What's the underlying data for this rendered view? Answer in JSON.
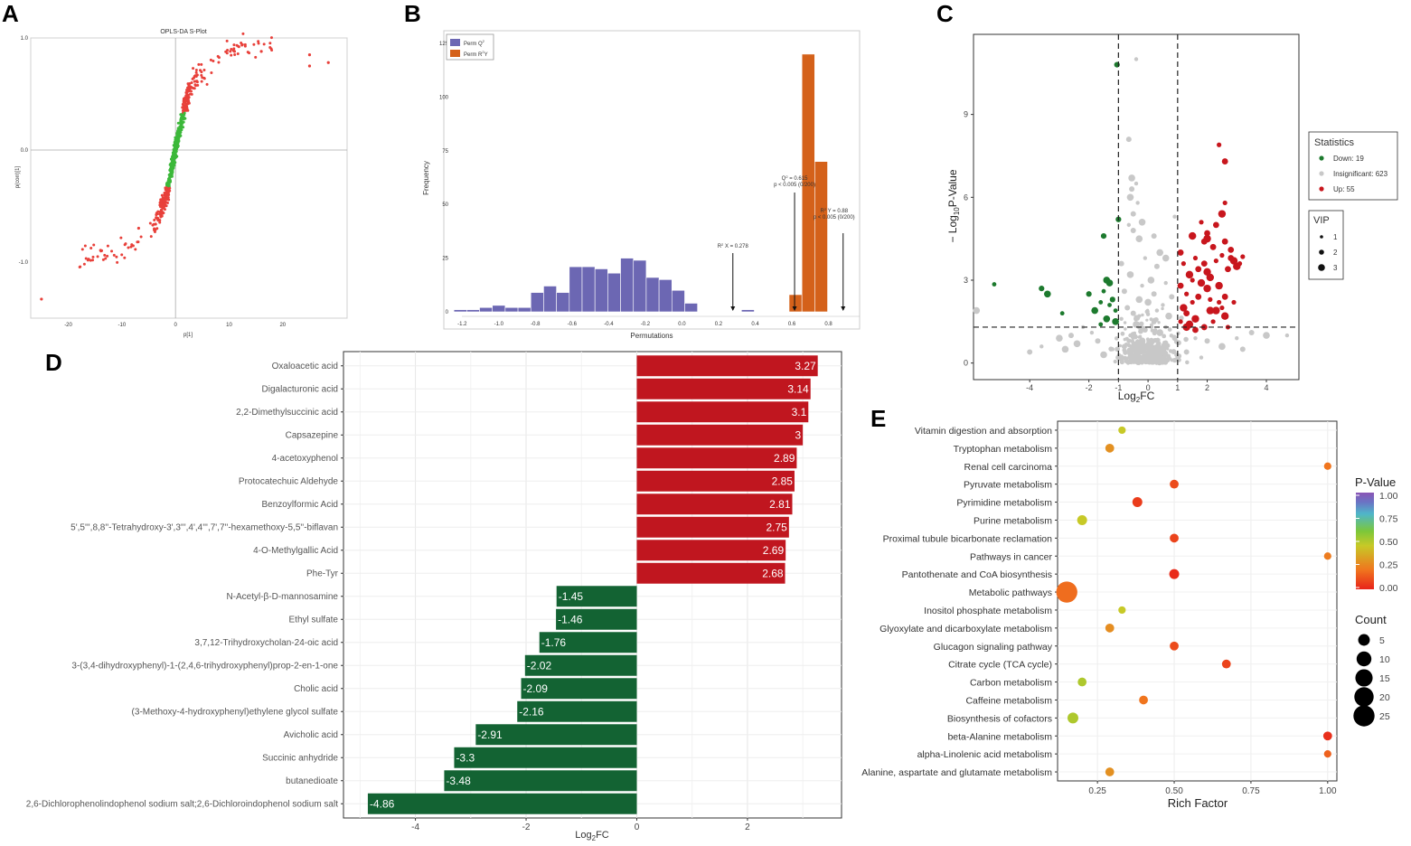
{
  "panel_labels": [
    "A",
    "B",
    "C",
    "D",
    "E"
  ],
  "chart_data": [
    {
      "panel": "A",
      "type": "scatter",
      "title": "OPLS-DA S-Plot",
      "xlabel": "p[1]",
      "ylabel": "p(corr)[1]",
      "xlim": [
        -27,
        32
      ],
      "ylim": [
        -1.5,
        1.0
      ],
      "xticks": [
        -20,
        -10,
        0,
        10,
        20
      ],
      "xtick_labels": [
        "-20",
        "-10",
        "0",
        "10",
        "20"
      ],
      "yticks": [
        -1.0,
        0.0,
        1.0
      ],
      "ytick_labels": [
        "-1.0",
        "0.0",
        "1.0"
      ],
      "colors": {
        "significant": "#e8403a",
        "other": "#3cb83a"
      }
    },
    {
      "panel": "B",
      "type": "bar",
      "xlabel": "Permutations",
      "ylabel": "Frequency",
      "xlim": [
        -1.3,
        0.97
      ],
      "ylim": [
        0,
        125
      ],
      "xticks": [
        -1.2,
        -1.0,
        -0.8,
        -0.6,
        -0.4,
        -0.2,
        0.0,
        0.2,
        0.4,
        0.6,
        0.8
      ],
      "xtick_labels": [
        "-1.2",
        "-1.0",
        "-0.8",
        "-0.6",
        "-0.4",
        "-0.2",
        "0.0",
        "0.2",
        "0.4",
        "0.6",
        "0.8"
      ],
      "yticks": [
        0,
        25,
        50,
        75,
        100,
        125
      ],
      "ytick_labels": [
        "0",
        "25",
        "50",
        "75",
        "100",
        "125"
      ],
      "bin_width": 0.07,
      "series": [
        {
          "name": "Perm Q²",
          "legend_text": "Perm Q",
          "legend_sup": "2",
          "color": "#6c67b3",
          "bins": [
            -1.21,
            -1.14,
            -1.07,
            -1.0,
            -0.93,
            -0.86,
            -0.79,
            -0.72,
            -0.65,
            -0.58,
            -0.51,
            -0.44,
            -0.37,
            -0.3,
            -0.23,
            -0.16,
            -0.09,
            -0.02,
            0.05,
            0.36
          ],
          "values": [
            1,
            1,
            2,
            3,
            2,
            2,
            9,
            12,
            9,
            21,
            21,
            20,
            18,
            25,
            24,
            16,
            15,
            10,
            4,
            1
          ]
        },
        {
          "name": "Perm R²Y",
          "legend_text": "Perm R",
          "legend_sup": "2",
          "legend_suffix": "Y",
          "color": "#d4611a",
          "bins": [
            0.62,
            0.69,
            0.76
          ],
          "values": [
            8,
            120,
            70
          ]
        }
      ],
      "annotations": [
        {
          "x": 0.278,
          "text": "R² X = 0.278",
          "main": "R",
          "sup": "2",
          "rest": " X = 0.278"
        },
        {
          "x": 0.615,
          "text": "Q² = 0.615",
          "main": "Q",
          "sup": "2",
          "rest": " = 0.615",
          "line2": "p < 0.005 (0/200)"
        },
        {
          "x": 0.88,
          "text": "R² Y = 0.88",
          "main": "R",
          "sup": "2",
          "rest": " Y = 0.88",
          "line2": "p < 0.005 (0/200)"
        }
      ]
    },
    {
      "panel": "C",
      "type": "scatter",
      "xlabel": "Log2FC",
      "xlabel_main": "Log",
      "xlabel_sub": "2",
      "xlabel_rest": "FC",
      "ylabel": "−Log10P-Value",
      "ylabel_main": "− Log",
      "ylabel_sub": "10",
      "ylabel_rest": "P-Value",
      "xlim": [
        -5.9,
        5.1
      ],
      "ylim": [
        -0.6,
        11.9
      ],
      "xticks": [
        -4,
        -2,
        -1,
        0,
        1,
        2,
        4
      ],
      "xtick_labels": [
        "-4",
        "-2",
        "-1",
        "0",
        "1",
        "2",
        "4"
      ],
      "yticks": [
        0,
        3,
        6,
        9
      ],
      "ytick_labels": [
        "0",
        "3",
        "6",
        "9"
      ],
      "thresholds": {
        "fc": [
          -1,
          1
        ],
        "p": 1.3
      },
      "legend_statistics_title": "Statistics",
      "legend_statistics": [
        {
          "label": "Down: 19",
          "color": "#1d7a2e"
        },
        {
          "label": "Insignificant: 623",
          "color": "#c8c8c8"
        },
        {
          "label": "Up: 55",
          "color": "#c8161d"
        }
      ],
      "legend_vip_title": "VIP",
      "legend_vip": [
        "1",
        "2",
        "3"
      ],
      "points_down": [
        [
          -5.2,
          2.85
        ],
        [
          -3.6,
          2.7
        ],
        [
          -3.4,
          2.5
        ],
        [
          -2.9,
          1.8
        ],
        [
          -2.0,
          2.5
        ],
        [
          -1.8,
          1.9
        ],
        [
          -1.6,
          2.2
        ],
        [
          -1.5,
          4.6
        ],
        [
          -1.4,
          3.0
        ],
        [
          -1.3,
          2.1
        ],
        [
          -1.2,
          2.3
        ],
        [
          -1.1,
          1.5
        ],
        [
          -1.6,
          1.4
        ],
        [
          -1.0,
          5.2
        ],
        [
          -1.3,
          2.9
        ],
        [
          -1.5,
          2.6
        ],
        [
          -1.05,
          10.8
        ],
        [
          -1.4,
          1.6
        ],
        [
          -1.1,
          1.9
        ]
      ],
      "points_up": [
        [
          2.4,
          7.9
        ],
        [
          2.6,
          7.3
        ],
        [
          2.0,
          4.5
        ],
        [
          1.8,
          5.1
        ],
        [
          2.3,
          5.0
        ],
        [
          2.5,
          5.4
        ],
        [
          2.6,
          5.8
        ],
        [
          2.0,
          4.7
        ],
        [
          1.5,
          4.6
        ],
        [
          1.6,
          3.8
        ],
        [
          1.9,
          3.6
        ],
        [
          2.1,
          3.1
        ],
        [
          2.5,
          3.9
        ],
        [
          2.8,
          3.8
        ],
        [
          3.0,
          3.5
        ],
        [
          3.2,
          3.85
        ],
        [
          2.6,
          4.4
        ],
        [
          1.4,
          3.2
        ],
        [
          1.3,
          2.5
        ],
        [
          1.1,
          2.8
        ],
        [
          1.2,
          2.0
        ],
        [
          1.5,
          2.2
        ],
        [
          1.7,
          3.4
        ],
        [
          2.0,
          2.7
        ],
        [
          2.4,
          2.2
        ],
        [
          2.6,
          2.4
        ],
        [
          2.3,
          1.9
        ],
        [
          2.2,
          1.5
        ],
        [
          1.9,
          1.3
        ],
        [
          1.6,
          1.6
        ],
        [
          1.1,
          1.5
        ],
        [
          1.3,
          1.8
        ],
        [
          1.4,
          1.4
        ],
        [
          1.2,
          3.6
        ],
        [
          2.7,
          3.4
        ],
        [
          2.9,
          3.7
        ],
        [
          3.1,
          3.6
        ],
        [
          2.2,
          4.2
        ],
        [
          1.8,
          2.9
        ],
        [
          2.5,
          2.0
        ],
        [
          1.7,
          2.4
        ],
        [
          2.0,
          3.3
        ],
        [
          2.3,
          3.7
        ],
        [
          2.8,
          4.1
        ],
        [
          2.6,
          1.7
        ],
        [
          1.5,
          3.0
        ],
        [
          1.9,
          4.4
        ],
        [
          2.4,
          2.8
        ],
        [
          2.1,
          2.3
        ],
        [
          1.1,
          4.0
        ],
        [
          1.3,
          1.3
        ],
        [
          2.7,
          1.3
        ],
        [
          1.6,
          1.2
        ],
        [
          2.1,
          1.9
        ],
        [
          2.9,
          2.2
        ]
      ],
      "points_ns": [
        [
          -0.4,
          11.0
        ],
        [
          -0.65,
          8.1
        ],
        [
          -0.55,
          6.7
        ],
        [
          -0.4,
          6.5
        ],
        [
          -0.55,
          6.3
        ],
        [
          -0.6,
          6.0
        ],
        [
          -0.35,
          5.8
        ],
        [
          -0.5,
          5.4
        ],
        [
          -0.2,
          5.1
        ],
        [
          -0.65,
          5.0
        ],
        [
          -0.5,
          4.8
        ],
        [
          -0.3,
          4.5
        ],
        [
          0.9,
          5.3
        ],
        [
          0.2,
          4.6
        ],
        [
          0.4,
          4.0
        ],
        [
          -0.1,
          3.8
        ],
        [
          0.3,
          3.5
        ],
        [
          -0.6,
          3.2
        ],
        [
          0.6,
          2.9
        ],
        [
          -0.8,
          2.6
        ],
        [
          0.1,
          3.0
        ],
        [
          -0.2,
          2.8
        ],
        [
          0.8,
          2.4
        ],
        [
          -0.3,
          2.3
        ],
        [
          0.5,
          2.1
        ],
        [
          -0.7,
          2.0
        ],
        [
          0.0,
          2.2
        ],
        [
          0.3,
          1.9
        ],
        [
          -0.5,
          1.8
        ],
        [
          0.7,
          1.7
        ],
        [
          -0.9,
          1.6
        ],
        [
          0.2,
          1.5
        ],
        [
          -0.4,
          1.4
        ],
        [
          0.6,
          1.3
        ],
        [
          -0.1,
          1.2
        ],
        [
          0.4,
          1.1
        ],
        [
          -0.6,
          1.0
        ],
        [
          0.9,
          0.9
        ],
        [
          -0.2,
          0.8
        ],
        [
          0.1,
          0.7
        ],
        [
          -0.8,
          0.6
        ],
        [
          0.5,
          0.5
        ],
        [
          -0.3,
          0.4
        ],
        [
          0.3,
          0.3
        ],
        [
          0.0,
          0.2
        ],
        [
          -2.2,
          1.3
        ],
        [
          -2.6,
          1.0
        ],
        [
          -3.0,
          0.9
        ],
        [
          -3.6,
          0.6
        ],
        [
          -4.0,
          0.4
        ],
        [
          -2.4,
          0.7
        ],
        [
          -1.9,
          1.1
        ],
        [
          -1.7,
          0.8
        ],
        [
          -2.8,
          0.5
        ],
        [
          1.6,
          0.9
        ],
        [
          2.0,
          0.8
        ],
        [
          2.5,
          0.6
        ],
        [
          3.0,
          0.9
        ],
        [
          3.5,
          1.1
        ],
        [
          4.0,
          1.0
        ],
        [
          4.7,
          1.0
        ],
        [
          3.2,
          0.5
        ],
        [
          -5.8,
          1.9
        ],
        [
          -1.2,
          0.5
        ],
        [
          1.3,
          0.4
        ],
        [
          -1.5,
          0.3
        ],
        [
          1.8,
          0.2
        ],
        [
          -0.9,
          3.6
        ],
        [
          0.6,
          3.8
        ],
        [
          -0.3,
          1.7
        ],
        [
          0.2,
          2.5
        ]
      ],
      "ns_cloud_count": 360
    },
    {
      "panel": "D",
      "type": "bar",
      "orientation": "horizontal",
      "xlabel": "Log2FC",
      "xlabel_main": "Log",
      "xlabel_sub": "2",
      "xlabel_rest": "FC",
      "xlim": [
        -5.3,
        3.7
      ],
      "xticks": [
        -4,
        -2,
        0,
        2
      ],
      "xtick_labels": [
        "-4",
        "-2",
        "0",
        "2"
      ],
      "colors": {
        "up": "#c0161f",
        "down": "#136333"
      },
      "categories": [
        "Oxaloacetic acid",
        "Digalacturonic acid",
        "2,2-Dimethylsuccinic acid",
        "Capsazepine",
        "4-acetoxyphenol",
        "Protocatechuic Aldehyde",
        "Benzoylformic Acid",
        "5',5''',8,8''-Tetrahydroxy-3',3''',4',4''',7',7''-hexamethoxy-5,5''-biflavan",
        "4-O-Methylgallic Acid",
        "Phe-Tyr",
        "N-Acetyl-β-D-mannosamine",
        "Ethyl sulfate",
        "3,7,12-Trihydroxycholan-24-oic acid",
        "3-(3,4-dihydroxyphenyl)-1-(2,4,6-trihydroxyphenyl)prop-2-en-1-one",
        "Cholic acid",
        "(3-Methoxy-4-hydroxyphenyl)ethylene glycol sulfate",
        "Avicholic acid",
        "Succinic anhydride",
        "butanedioate",
        "2,6-Dichlorophenolindophenol sodium salt;2,6-Dichloroindophenol sodium salt"
      ],
      "values": [
        3.27,
        3.14,
        3.1,
        3,
        2.89,
        2.85,
        2.81,
        2.75,
        2.69,
        2.68,
        -1.45,
        -1.46,
        -1.76,
        -2.02,
        -2.09,
        -2.16,
        -2.91,
        -3.3,
        -3.48,
        -4.86
      ],
      "value_labels": [
        "3.27",
        "3.14",
        "3.1",
        "3",
        "2.89",
        "2.85",
        "2.81",
        "2.75",
        "2.69",
        "2.68",
        "-1.45",
        "-1.46",
        "-1.76",
        "-2.02",
        "-2.09",
        "-2.16",
        "-2.91",
        "-3.3",
        "-3.48",
        "-4.86"
      ]
    },
    {
      "panel": "E",
      "type": "scatter",
      "subtype": "bubble",
      "xlabel": "Rich Factor",
      "xlim": [
        0.12,
        1.03
      ],
      "xticks": [
        0.25,
        0.5,
        0.75,
        1.0
      ],
      "xtick_labels": [
        "0.25",
        "0.50",
        "0.75",
        "1.00"
      ],
      "categories": [
        "Vitamin digestion and absorption",
        "Tryptophan metabolism",
        "Renal cell carcinoma",
        "Pyruvate metabolism",
        "Pyrimidine metabolism",
        "Purine metabolism",
        "Proximal tubule bicarbonate reclamation",
        "Pathways in cancer",
        "Pantothenate and CoA biosynthesis",
        "Metabolic pathways",
        "Inositol phosphate metabolism",
        "Glyoxylate and dicarboxylate metabolism",
        "Glucagon signaling pathway",
        "Citrate cycle (TCA cycle)",
        "Carbon metabolism",
        "Caffeine metabolism",
        "Biosynthesis of cofactors",
        "beta-Alanine metabolism",
        "alpha-Linolenic acid metabolism",
        "Alanine, aspartate and glutamate metabolism"
      ],
      "rich_factor": [
        0.33,
        0.29,
        1.0,
        0.5,
        0.38,
        0.2,
        0.5,
        1.0,
        0.5,
        0.15,
        0.33,
        0.29,
        0.5,
        0.67,
        0.2,
        0.4,
        0.17,
        1.0,
        1.0,
        0.29
      ],
      "count": [
        1,
        2,
        1,
        2,
        3,
        3,
        2,
        1,
        3,
        25,
        1,
        2,
        2,
        2,
        2,
        2,
        4,
        2,
        1,
        2
      ],
      "p_value": [
        0.45,
        0.28,
        0.2,
        0.1,
        0.06,
        0.45,
        0.08,
        0.22,
        0.02,
        0.18,
        0.45,
        0.27,
        0.1,
        0.08,
        0.5,
        0.2,
        0.5,
        0.03,
        0.15,
        0.28
      ],
      "legend_pvalue_title": "P-Value",
      "legend_pvalue_ticks": [
        "1.00",
        "0.75",
        "0.50",
        "0.25",
        "0.00"
      ],
      "legend_count_title": "Count",
      "legend_count": [
        "5",
        "10",
        "15",
        "20",
        "25"
      ],
      "colorscale": [
        "#e8231a",
        "#f0751e",
        "#c7c927",
        "#7cc73a",
        "#4fb6c9",
        "#6a74c4",
        "#8a55b5"
      ]
    }
  ]
}
